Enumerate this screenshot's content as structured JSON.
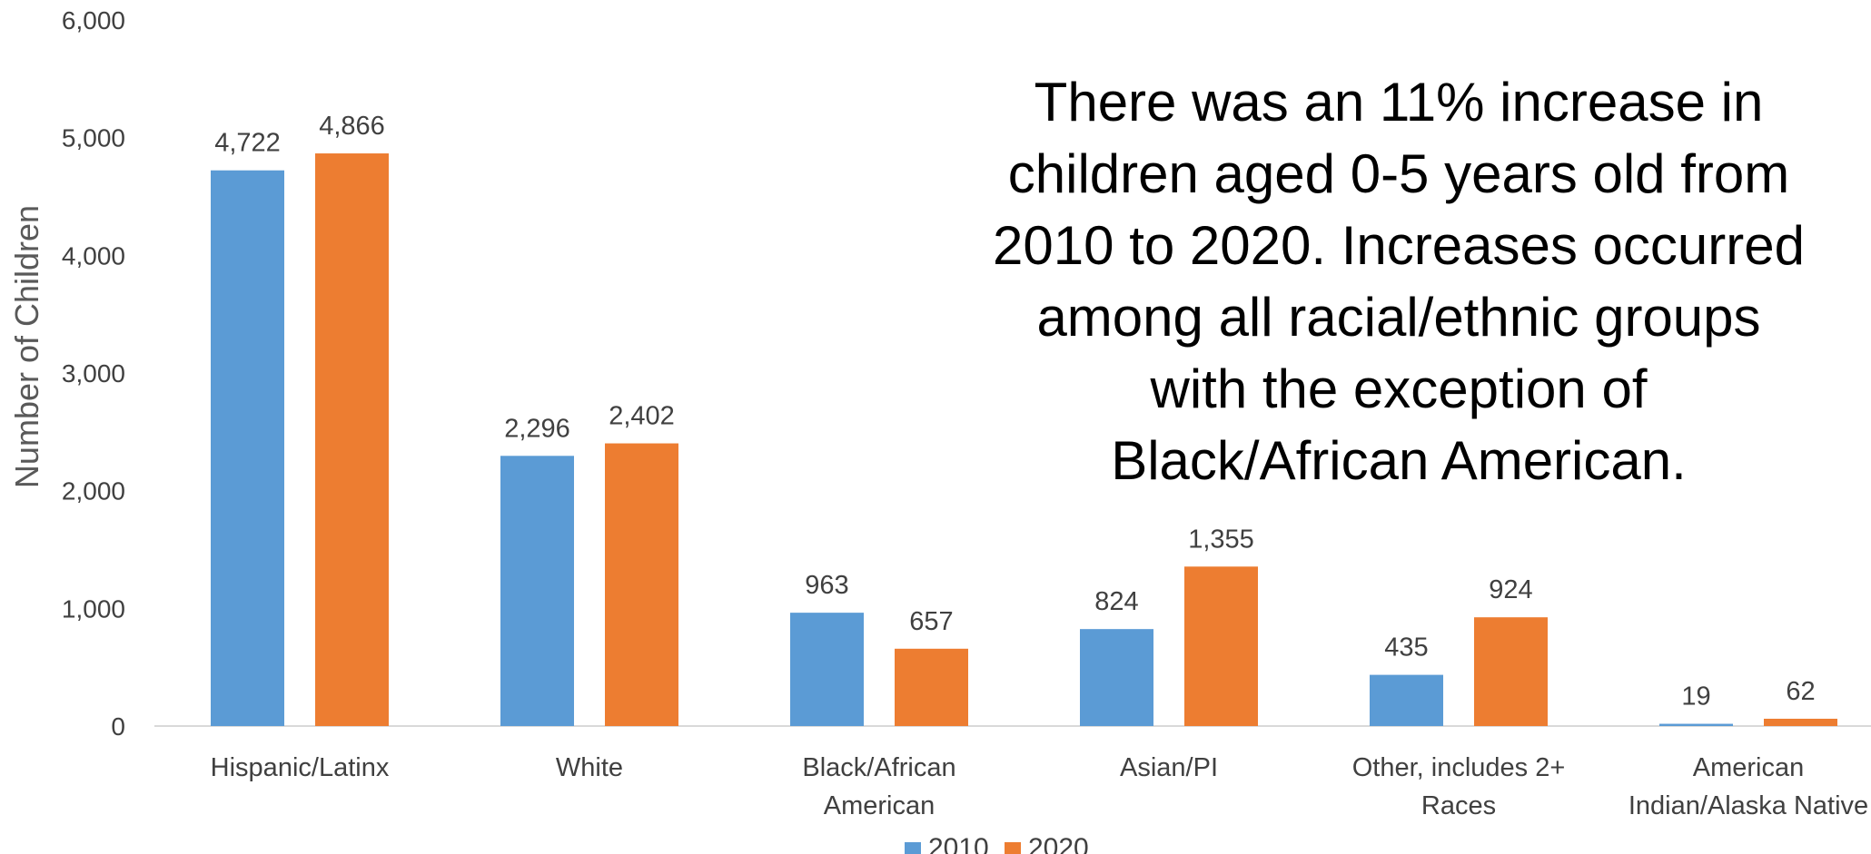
{
  "chart_data": {
    "type": "bar",
    "title": "",
    "xlabel": "",
    "ylabel": "Number of Children",
    "ylim": [
      0,
      6000
    ],
    "yticks": [
      0,
      1000,
      2000,
      3000,
      4000,
      5000,
      6000
    ],
    "ytick_labels": [
      "0",
      "1,000",
      "2,000",
      "3,000",
      "4,000",
      "5,000",
      "6,000"
    ],
    "grid": false,
    "legend_position": "bottom",
    "categories": [
      [
        "Hispanic/Latinx"
      ],
      [
        "White"
      ],
      [
        "Black/African",
        "American"
      ],
      [
        "Asian/PI"
      ],
      [
        "Other, includes 2+",
        "Races"
      ],
      [
        "American",
        "Indian/Alaska Native"
      ]
    ],
    "series": [
      {
        "name": "2010",
        "color": "#5B9BD5",
        "values": [
          4722,
          2296,
          963,
          824,
          435,
          19
        ],
        "labels": [
          "4,722",
          "2,296",
          "963",
          "824",
          "435",
          "19"
        ]
      },
      {
        "name": "2020",
        "color": "#ED7D31",
        "values": [
          4866,
          2402,
          657,
          1355,
          924,
          62
        ],
        "labels": [
          "4,866",
          "2,402",
          "657",
          "1,355",
          "924",
          "62"
        ]
      }
    ],
    "annotation": [
      "There was an 11% increase in",
      "children aged 0-5 years old from",
      "2010 to 2020. Increases occurred",
      "among all racial/ethnic groups",
      "with the exception of",
      "Black/African American."
    ]
  }
}
